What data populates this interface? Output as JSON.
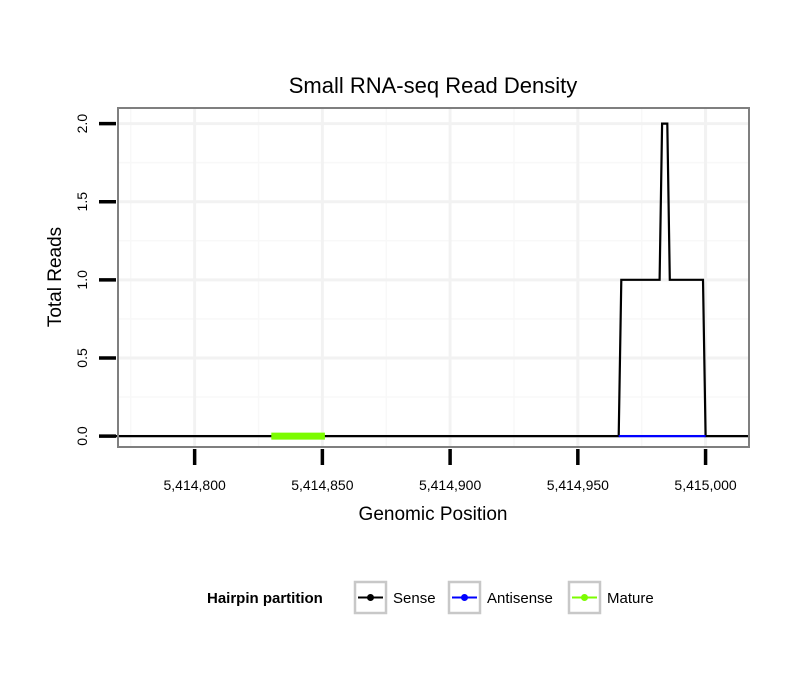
{
  "chart_data": {
    "type": "line",
    "title": "Small RNA-seq Read Density",
    "xlabel": "Genomic Position",
    "ylabel": "Total Reads",
    "xlim": [
      5414770,
      5415017
    ],
    "ylim": [
      -0.07,
      2.1
    ],
    "x_ticks": [
      5414800,
      5414850,
      5414900,
      5414950,
      5415000
    ],
    "x_tick_labels": [
      "5,414,800",
      "5,414,850",
      "5,414,900",
      "5,414,950",
      "5,415,000"
    ],
    "y_ticks": [
      0,
      0.5,
      1,
      1.5,
      2
    ],
    "y_tick_labels": [
      "0.0",
      "0.5",
      "1.0",
      "1.5",
      "2.0"
    ],
    "grid": true,
    "legend": {
      "title": "Hairpin partition",
      "position": "bottom",
      "entries": [
        {
          "name": "Sense",
          "color": "#000000"
        },
        {
          "name": "Antisense",
          "color": "#0000ff"
        },
        {
          "name": "Mature",
          "color": "#7cfc00"
        }
      ]
    },
    "series": [
      {
        "name": "Sense",
        "color": "#000000",
        "x": [
          5414768,
          5414966,
          5414967,
          5414982,
          5414983,
          5414985,
          5414986,
          5414999,
          5415000,
          5415017
        ],
        "y": [
          0,
          0,
          1,
          1,
          2,
          2,
          1,
          1,
          0,
          0
        ]
      },
      {
        "name": "Antisense",
        "color": "#0000ff",
        "x": [
          5414966,
          5415000
        ],
        "y": [
          0,
          0
        ]
      },
      {
        "name": "Mature",
        "color": "#7cfc00",
        "x": [
          5414830,
          5414851
        ],
        "y": [
          0,
          0
        ]
      }
    ]
  }
}
